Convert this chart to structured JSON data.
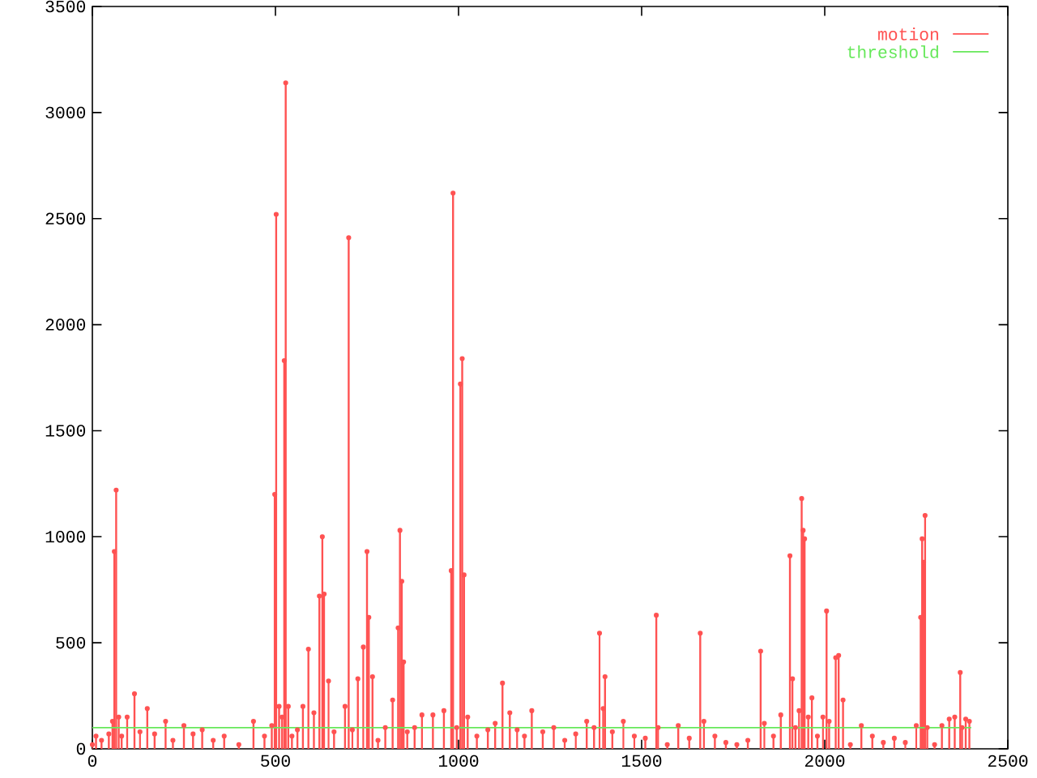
{
  "chart_data": {
    "type": "lollipop",
    "xlim": [
      0,
      2500
    ],
    "ylim": [
      0,
      3500
    ],
    "xticks": [
      0,
      500,
      1000,
      1500,
      2000,
      2500
    ],
    "yticks": [
      0,
      500,
      1000,
      1500,
      2000,
      2500,
      3000,
      3500
    ],
    "grid": false,
    "legend": "top right",
    "series": [
      {
        "name": "motion",
        "color": "#ff5252",
        "marker": "circle",
        "x": [
          0,
          10,
          25,
          45,
          55,
          60,
          65,
          72,
          80,
          95,
          115,
          130,
          150,
          170,
          200,
          220,
          250,
          275,
          300,
          330,
          360,
          400,
          440,
          470,
          490,
          498,
          502,
          510,
          518,
          524,
          528,
          535,
          545,
          560,
          575,
          590,
          605,
          620,
          628,
          633,
          645,
          660,
          690,
          700,
          710,
          725,
          740,
          750,
          755,
          765,
          780,
          800,
          820,
          835,
          840,
          845,
          850,
          860,
          880,
          900,
          930,
          960,
          980,
          985,
          995,
          1005,
          1010,
          1015,
          1025,
          1050,
          1080,
          1100,
          1120,
          1140,
          1160,
          1180,
          1200,
          1230,
          1260,
          1290,
          1320,
          1350,
          1370,
          1385,
          1395,
          1400,
          1420,
          1450,
          1480,
          1510,
          1540,
          1545,
          1570,
          1600,
          1630,
          1660,
          1670,
          1700,
          1730,
          1760,
          1790,
          1825,
          1835,
          1860,
          1880,
          1905,
          1912,
          1920,
          1930,
          1937,
          1941,
          1945,
          1955,
          1965,
          1980,
          1995,
          2005,
          2012,
          2030,
          2038,
          2050,
          2070,
          2100,
          2130,
          2160,
          2190,
          2220,
          2250,
          2262,
          2266,
          2270,
          2274,
          2280,
          2300,
          2320,
          2340,
          2355,
          2370,
          2375,
          2385,
          2395
        ],
        "values": [
          20,
          60,
          40,
          70,
          130,
          930,
          1220,
          150,
          60,
          150,
          260,
          80,
          190,
          70,
          130,
          40,
          110,
          70,
          90,
          40,
          60,
          20,
          130,
          60,
          110,
          1200,
          2520,
          200,
          150,
          1830,
          3140,
          200,
          60,
          90,
          200,
          470,
          170,
          720,
          1000,
          730,
          320,
          80,
          200,
          2410,
          90,
          330,
          480,
          930,
          620,
          340,
          40,
          100,
          230,
          570,
          1030,
          790,
          410,
          80,
          100,
          160,
          160,
          180,
          840,
          2620,
          100,
          1720,
          1840,
          820,
          150,
          60,
          90,
          120,
          310,
          170,
          90,
          60,
          180,
          80,
          100,
          40,
          70,
          130,
          100,
          545,
          190,
          340,
          80,
          130,
          60,
          50,
          630,
          100,
          20,
          110,
          50,
          545,
          130,
          60,
          30,
          20,
          40,
          460,
          120,
          60,
          160,
          910,
          330,
          100,
          180,
          1180,
          1030,
          990,
          150,
          240,
          60,
          150,
          650,
          130,
          430,
          440,
          230,
          20,
          110,
          60,
          30,
          50,
          30,
          110,
          620,
          990,
          880,
          1100,
          100,
          20,
          110,
          140,
          150,
          360,
          100,
          140,
          130
        ]
      },
      {
        "name": "threshold",
        "type": "line",
        "color": "#66e85a",
        "x": [
          0,
          2400
        ],
        "values": [
          100,
          100
        ]
      }
    ]
  }
}
